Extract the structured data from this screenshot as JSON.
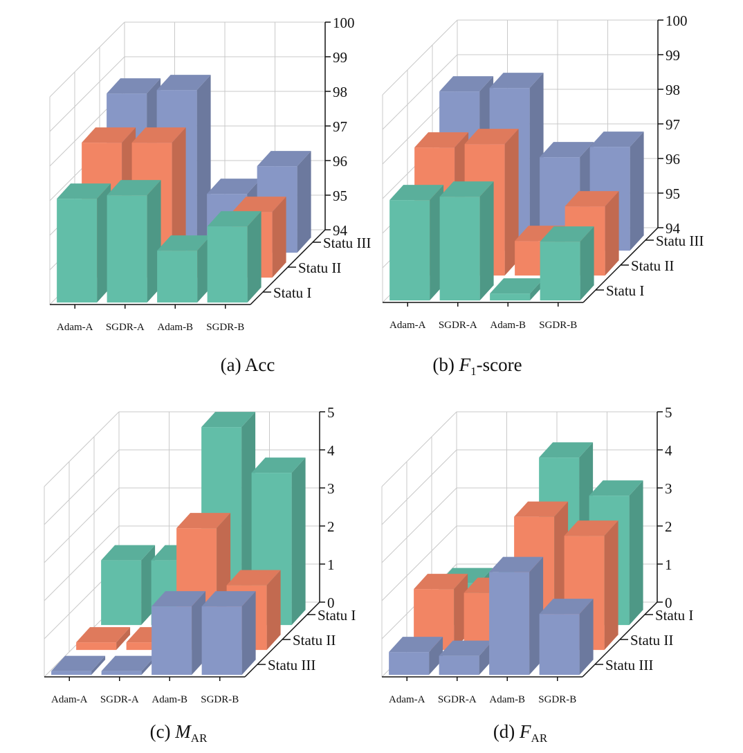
{
  "figure": {
    "colors": {
      "Statu I": "#62BEA8",
      "Statu II": "#F28564",
      "Statu III": "#8797C6",
      "dark_tile": "#4E5A72"
    }
  },
  "chart_data": [
    {
      "type": "bar3d",
      "caption": "(a) Acc",
      "caption_parts": [
        "(a) Acc"
      ],
      "categories": [
        "Adam-A",
        "SGDR-A",
        "Adam-B",
        "SGDR-B"
      ],
      "depth_labels": [
        "Statu I",
        "Statu II",
        "Statu III"
      ],
      "zlim": [
        94,
        100
      ],
      "z_ticks": [
        "94",
        "95",
        "96",
        "97",
        "98",
        "99",
        "100"
      ],
      "series": [
        {
          "name": "Statu I",
          "values": [
            97.0,
            97.1,
            95.5,
            96.2
          ]
        },
        {
          "name": "Statu II",
          "values": [
            97.9,
            97.9,
            94.6,
            95.9
          ]
        },
        {
          "name": "Statu III",
          "values": [
            98.6,
            98.7,
            95.7,
            96.5
          ]
        }
      ]
    },
    {
      "type": "bar3d",
      "caption": "(b) F1-score",
      "caption_parts": [
        "(b) ",
        "F",
        "1",
        "-score"
      ],
      "categories": [
        "Adam-A",
        "SGDR-A",
        "Adam-B",
        "SGDR-B"
      ],
      "depth_labels": [
        "Statu I",
        "Statu II",
        "Statu III"
      ],
      "zlim": [
        94,
        100
      ],
      "z_ticks": [
        "94",
        "95",
        "96",
        "97",
        "98",
        "99",
        "100"
      ],
      "series": [
        {
          "name": "Statu I",
          "values": [
            96.9,
            97.0,
            94.2,
            95.7
          ]
        },
        {
          "name": "Statu II",
          "values": [
            97.7,
            97.8,
            95.0,
            96.0
          ]
        },
        {
          "name": "Statu III",
          "values": [
            98.6,
            98.7,
            96.7,
            97.0
          ]
        }
      ]
    },
    {
      "type": "bar3d",
      "caption": "(c) MAR",
      "caption_parts": [
        "(c) ",
        "M",
        "AR",
        ""
      ],
      "categories": [
        "Adam-A",
        "SGDR-A",
        "Adam-B",
        "SGDR-B"
      ],
      "depth_labels": [
        "Statu III",
        "Statu II",
        "Statu I"
      ],
      "zlim": [
        0,
        5
      ],
      "z_ticks": [
        "0",
        "1",
        "2",
        "3",
        "4",
        "5"
      ],
      "series": [
        {
          "name": "Statu III",
          "values": [
            0.1,
            0.1,
            1.8,
            1.8
          ]
        },
        {
          "name": "Statu II",
          "values": [
            0.2,
            0.2,
            3.2,
            1.7
          ]
        },
        {
          "name": "Statu I",
          "values": [
            1.7,
            1.7,
            5.2,
            4.0
          ]
        }
      ]
    },
    {
      "type": "bar3d",
      "caption": "(d) FAR",
      "caption_parts": [
        "(d) ",
        "F",
        "AR",
        ""
      ],
      "categories": [
        "Adam-A",
        "SGDR-A",
        "Adam-B",
        "SGDR-B"
      ],
      "depth_labels": [
        "Statu III",
        "Statu II",
        "Statu I"
      ],
      "zlim": [
        0,
        5
      ],
      "z_ticks": [
        "0",
        "1",
        "2",
        "3",
        "4",
        "5"
      ],
      "series": [
        {
          "name": "Statu III",
          "values": [
            0.6,
            0.5,
            2.7,
            1.6
          ]
        },
        {
          "name": "Statu II",
          "values": [
            1.6,
            1.5,
            3.5,
            3.0
          ]
        },
        {
          "name": "Statu I",
          "values": [
            1.1,
            1.1,
            4.4,
            3.4
          ]
        }
      ]
    }
  ]
}
